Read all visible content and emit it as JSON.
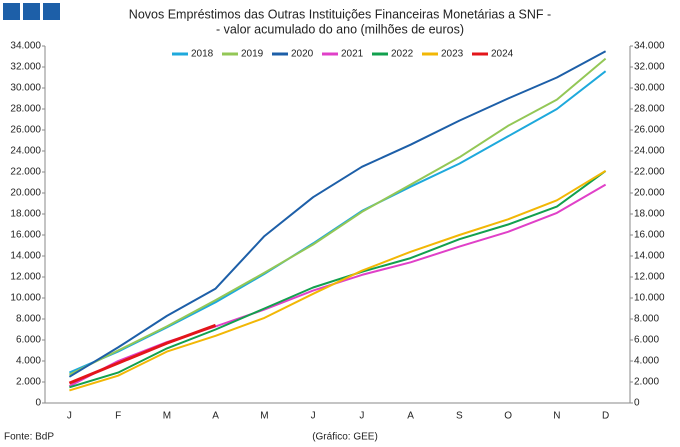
{
  "chart_data": {
    "type": "line",
    "title": "Novos Empréstimos das Outras Instituições Financeiras Monetárias a SNF -",
    "subtitle": "- valor acumulado do ano (milhões de euros)",
    "source": "Fonte: BdP",
    "credit": "(Gráfico: GEE)",
    "categories": [
      "J",
      "F",
      "M",
      "A",
      "M",
      "J",
      "J",
      "A",
      "S",
      "O",
      "N",
      "D"
    ],
    "series": [
      {
        "name": "2018",
        "color": "#1ea9dc",
        "values": [
          2900,
          4900,
          7200,
          9600,
          12300,
          15200,
          18300,
          20600,
          22800,
          25400,
          28000,
          31600
        ]
      },
      {
        "name": "2019",
        "color": "#93c756",
        "values": [
          2700,
          5000,
          7300,
          9800,
          12400,
          15100,
          18200,
          20800,
          23400,
          26400,
          28900,
          32800
        ]
      },
      {
        "name": "2020",
        "color": "#1d5fa8",
        "values": [
          2500,
          5300,
          8300,
          10900,
          15900,
          19600,
          22500,
          24600,
          26900,
          29000,
          31000,
          33500
        ]
      },
      {
        "name": "2021",
        "color": "#e040c8",
        "values": [
          1600,
          4000,
          5800,
          7300,
          8900,
          10700,
          12200,
          13400,
          14900,
          16300,
          18100,
          20800
        ]
      },
      {
        "name": "2022",
        "color": "#12a04e",
        "values": [
          1500,
          2900,
          5200,
          7000,
          9000,
          11000,
          12500,
          13800,
          15600,
          17000,
          18700,
          22100
        ]
      },
      {
        "name": "2023",
        "color": "#f2b705",
        "values": [
          1200,
          2600,
          4900,
          6400,
          8100,
          10400,
          12600,
          14400,
          16000,
          17500,
          19300,
          22100
        ]
      },
      {
        "name": "2024",
        "color": "#e3151a",
        "values": [
          1900,
          3800,
          5700,
          7400,
          null,
          null,
          null,
          null,
          null,
          null,
          null,
          null
        ]
      }
    ],
    "ylim": [
      0,
      34000
    ],
    "yticks": [
      0,
      {
        "value": 2000,
        "label": "2.000"
      },
      {
        "value": 4000,
        "label": "4.000"
      },
      {
        "value": 6000,
        "label": "6.000"
      },
      {
        "value": 8000,
        "label": "8.000"
      },
      {
        "value": 10000,
        "label": "10.000"
      },
      {
        "value": 12000,
        "label": "12.000"
      },
      {
        "value": 14000,
        "label": "14.000"
      },
      {
        "value": 16000,
        "label": "16.000"
      },
      {
        "value": 18000,
        "label": "18.000"
      },
      {
        "value": 20000,
        "label": "20.000"
      },
      {
        "value": 22000,
        "label": "22.000"
      },
      {
        "value": 24000,
        "label": "24.000"
      },
      {
        "value": 26000,
        "label": "26.000"
      },
      {
        "value": 28000,
        "label": "28.000"
      },
      {
        "value": 30000,
        "label": "30.000"
      },
      {
        "value": 32000,
        "label": "32.000"
      },
      {
        "value": 34000,
        "label": "34.000"
      }
    ],
    "y2lim": [
      0,
      34000
    ],
    "y2ticks": [
      0,
      {
        "value": 2000,
        "label": "2.000"
      },
      {
        "value": 4000,
        "label": "4.000"
      },
      {
        "value": 6000,
        "label": "6.000"
      },
      {
        "value": 8000,
        "label": "8.000"
      },
      {
        "value": 10000,
        "label": "10.000"
      },
      {
        "value": 12000,
        "label": "12.000"
      },
      {
        "value": 14000,
        "label": "14.000"
      },
      {
        "value": 16000,
        "label": "16.000"
      },
      {
        "value": 18000,
        "label": "18.000"
      },
      {
        "value": 20000,
        "label": "20.000"
      },
      {
        "value": 22000,
        "label": "22.000"
      },
      {
        "value": 24000,
        "label": "24.000"
      },
      {
        "value": 26000,
        "label": "26.000"
      },
      {
        "value": 28000,
        "label": "28.000"
      },
      {
        "value": 30000,
        "label": "30.000"
      },
      {
        "value": 32000,
        "label": "32.000"
      },
      {
        "value": 34000,
        "label": "34.000"
      }
    ],
    "grid": false,
    "legend": "top"
  }
}
